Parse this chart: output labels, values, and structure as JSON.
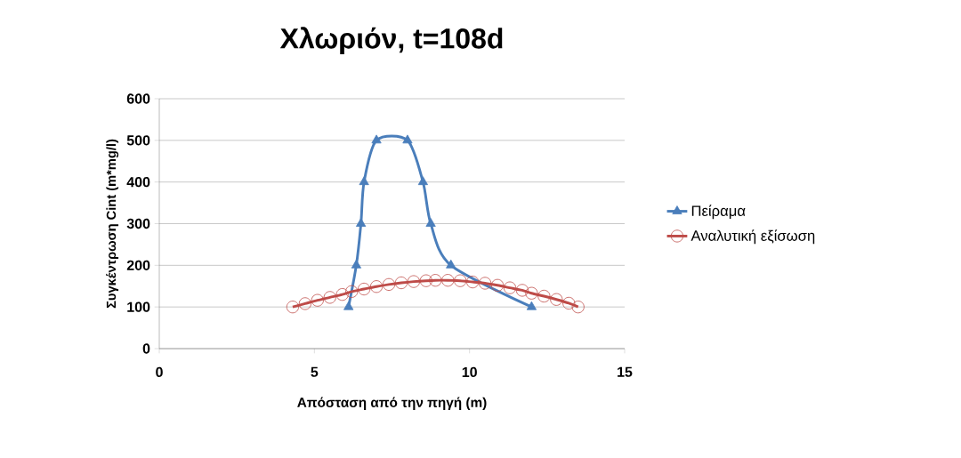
{
  "chart_data": {
    "type": "line",
    "title": "Χλωριόν, t=108d",
    "xlabel": "Απόσταση από την πηγή (m)",
    "ylabel": "Συγκέντρωση Cint (m*mg/l)",
    "series": [
      {
        "name": "Πείραμα",
        "color": "#4a7ebb",
        "marker": "triangle",
        "x": [
          6.1,
          6.35,
          6.5,
          6.6,
          7.0,
          8.0,
          8.5,
          8.75,
          9.4,
          12.0
        ],
        "values": [
          100,
          200,
          300,
          400,
          500,
          500,
          400,
          300,
          200,
          100
        ]
      },
      {
        "name": "Αναλυτική εξίσωση",
        "color": "#be4b48",
        "marker": "circle",
        "x": [
          4.3,
          4.7,
          5.1,
          5.5,
          5.9,
          6.2,
          6.6,
          7.0,
          7.4,
          7.8,
          8.2,
          8.6,
          8.9,
          9.3,
          9.7,
          10.1,
          10.5,
          10.9,
          11.3,
          11.7,
          12.0,
          12.4,
          12.8,
          13.2,
          13.5
        ],
        "values": [
          100,
          108,
          116,
          123,
          130,
          137,
          143,
          149,
          154,
          158,
          161,
          163,
          164,
          164,
          163,
          160,
          157,
          152,
          146,
          140,
          133,
          126,
          118,
          109,
          100
        ]
      }
    ],
    "xlim": [
      0,
      15
    ],
    "xticks": [
      0,
      5,
      10,
      15
    ],
    "ylim": [
      0,
      600
    ],
    "yticks": [
      0,
      100,
      200,
      300,
      400,
      500,
      600
    ],
    "grid": "y",
    "legend": "right",
    "line_style": "solid"
  }
}
